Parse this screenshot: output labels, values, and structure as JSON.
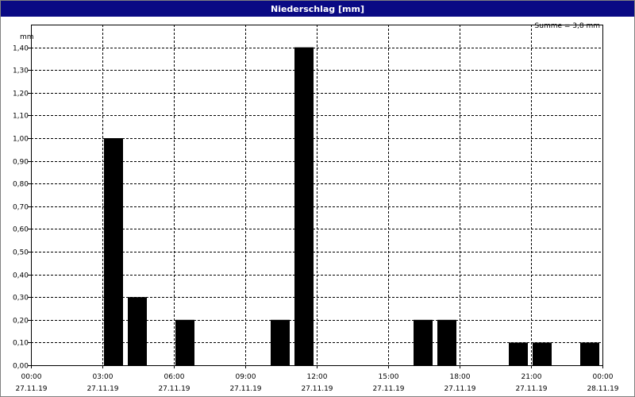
{
  "window": {
    "title": "Niederschlag [mm]"
  },
  "annotation": {
    "sum": "Summe = 3,8 mm"
  },
  "colors": {
    "title_bar": "#0a0a84",
    "bar": "#000000",
    "grid": "#000000"
  },
  "chart_data": {
    "type": "bar",
    "title": "Niederschlag [mm]",
    "ylabel": "mm",
    "ylim": [
      0,
      1.5
    ],
    "xlim": [
      0,
      24
    ],
    "grid": true,
    "y_ticks": [
      "0,00",
      "0,10",
      "0,20",
      "0,30",
      "0,40",
      "0,50",
      "0,60",
      "0,70",
      "0,80",
      "0,90",
      "1,00",
      "1,10",
      "1,20",
      "1,30",
      "1,40"
    ],
    "x_ticks": [
      {
        "time": "00:00",
        "date": "27.11.19"
      },
      {
        "time": "03:00",
        "date": "27.11.19"
      },
      {
        "time": "06:00",
        "date": "27.11.19"
      },
      {
        "time": "09:00",
        "date": "27.11.19"
      },
      {
        "time": "12:00",
        "date": "27.11.19"
      },
      {
        "time": "15:00",
        "date": "27.11.19"
      },
      {
        "time": "18:00",
        "date": "27.11.19"
      },
      {
        "time": "21:00",
        "date": "27.11.19"
      },
      {
        "time": "00:00",
        "date": "28.11.19"
      }
    ],
    "bars": [
      {
        "start": "03:00",
        "end": "04:00",
        "value": 1.0
      },
      {
        "start": "04:00",
        "end": "05:00",
        "value": 0.3
      },
      {
        "start": "06:00",
        "end": "07:00",
        "value": 0.2
      },
      {
        "start": "10:00",
        "end": "11:00",
        "value": 0.2
      },
      {
        "start": "11:00",
        "end": "12:00",
        "value": 1.4
      },
      {
        "start": "16:00",
        "end": "17:00",
        "value": 0.2
      },
      {
        "start": "17:00",
        "end": "18:00",
        "value": 0.2
      },
      {
        "start": "20:00",
        "end": "21:00",
        "value": 0.1
      },
      {
        "start": "21:00",
        "end": "22:00",
        "value": 0.1
      },
      {
        "start": "23:00",
        "end": "00:00",
        "value": 0.1
      }
    ]
  }
}
